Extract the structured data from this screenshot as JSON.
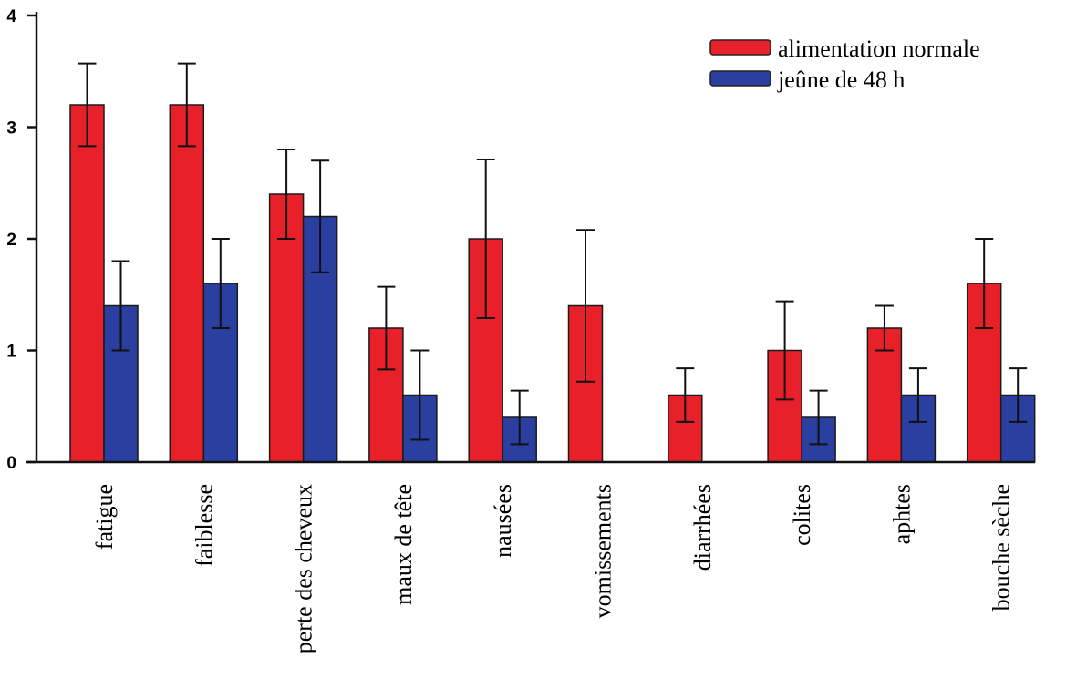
{
  "chart_data": {
    "type": "bar",
    "title": "",
    "xlabel": "",
    "ylabel": "",
    "ylim": [
      0,
      4
    ],
    "yticks": [
      0,
      1,
      2,
      3,
      4
    ],
    "grid": false,
    "legend_position": "top-right",
    "categories": [
      "fatigue",
      "faiblesse",
      "perte des cheveux",
      "maux de tête",
      "nausées",
      "vomissements",
      "diarrhées",
      "colites",
      "aphtes",
      "bouche sèche"
    ],
    "series": [
      {
        "name": "alimentation normale",
        "color": "#e8202a",
        "values": [
          3.2,
          3.2,
          2.4,
          1.2,
          2.0,
          1.4,
          0.6,
          1.0,
          1.2,
          1.6
        ],
        "errors": [
          0.37,
          0.37,
          0.4,
          0.37,
          0.71,
          0.68,
          0.24,
          0.44,
          0.2,
          0.4
        ]
      },
      {
        "name": "jeûne de 48 h",
        "color": "#2a3fa0",
        "values": [
          1.4,
          1.6,
          2.2,
          0.6,
          0.4,
          0,
          0,
          0.4,
          0.6,
          0.6
        ],
        "errors": [
          0.4,
          0.4,
          0.5,
          0.4,
          0.24,
          0,
          0,
          0.24,
          0.24,
          0.24
        ]
      }
    ]
  }
}
